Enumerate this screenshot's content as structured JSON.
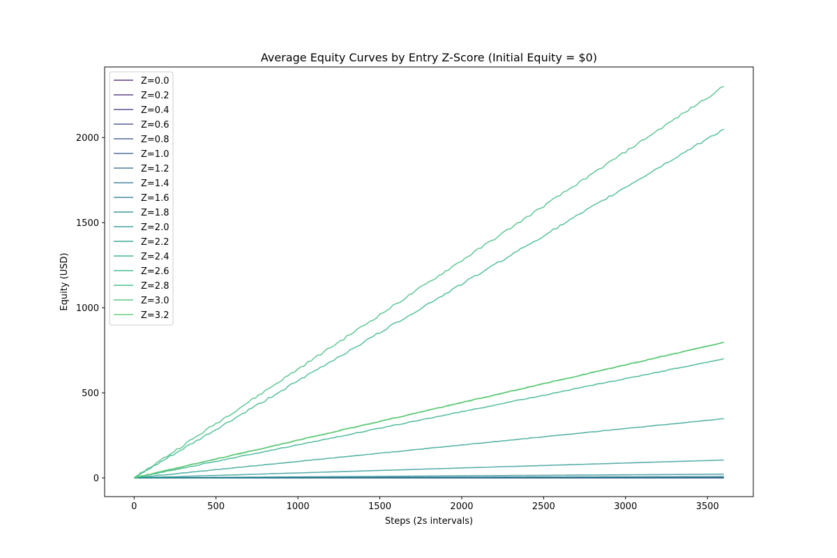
{
  "chart_data": {
    "type": "line",
    "title": "Average Equity Curves by Entry Z-Score (Initial Equity = $0)",
    "xlabel": "Steps (2s intervals)",
    "ylabel": "Equity (USD)",
    "xlim": [
      -180,
      3780
    ],
    "ylim": [
      -110,
      2415
    ],
    "xticks": [
      0,
      500,
      1000,
      1500,
      2000,
      2500,
      3000,
      3500
    ],
    "yticks": [
      0,
      500,
      1000,
      1500,
      2000
    ],
    "x_end": 3600,
    "grid": false,
    "legend_position": "upper-left",
    "series": [
      {
        "name": "Z=0.0",
        "color": "#482071",
        "final": 0
      },
      {
        "name": "Z=0.2",
        "color": "#472c7a",
        "final": 0
      },
      {
        "name": "Z=0.4",
        "color": "#453781",
        "final": 0
      },
      {
        "name": "Z=0.6",
        "color": "#404387",
        "final": 0
      },
      {
        "name": "Z=0.8",
        "color": "#3b518b",
        "final": 0
      },
      {
        "name": "Z=1.0",
        "color": "#365d8d",
        "final": 0
      },
      {
        "name": "Z=1.2",
        "color": "#31688e",
        "final": 1
      },
      {
        "name": "Z=1.4",
        "color": "#2c728e",
        "final": 3
      },
      {
        "name": "Z=1.6",
        "color": "#287d8e",
        "final": 8
      },
      {
        "name": "Z=1.8",
        "color": "#24878e",
        "final": 22
      },
      {
        "name": "Z=2.0",
        "color": "#21918c",
        "final": 105
      },
      {
        "name": "Z=2.2",
        "color": "#1f9a8a",
        "final": 348
      },
      {
        "name": "Z=2.4",
        "color": "#22a884",
        "final": 700
      },
      {
        "name": "Z=2.6",
        "color": "#2ab07f",
        "final": 2050
      },
      {
        "name": "Z=2.8",
        "color": "#35b779",
        "final": 2300
      },
      {
        "name": "Z=3.0",
        "color": "#44bf70",
        "final": 797
      },
      {
        "name": "Z=3.2",
        "color": "#54c568",
        "final": 797
      }
    ]
  }
}
